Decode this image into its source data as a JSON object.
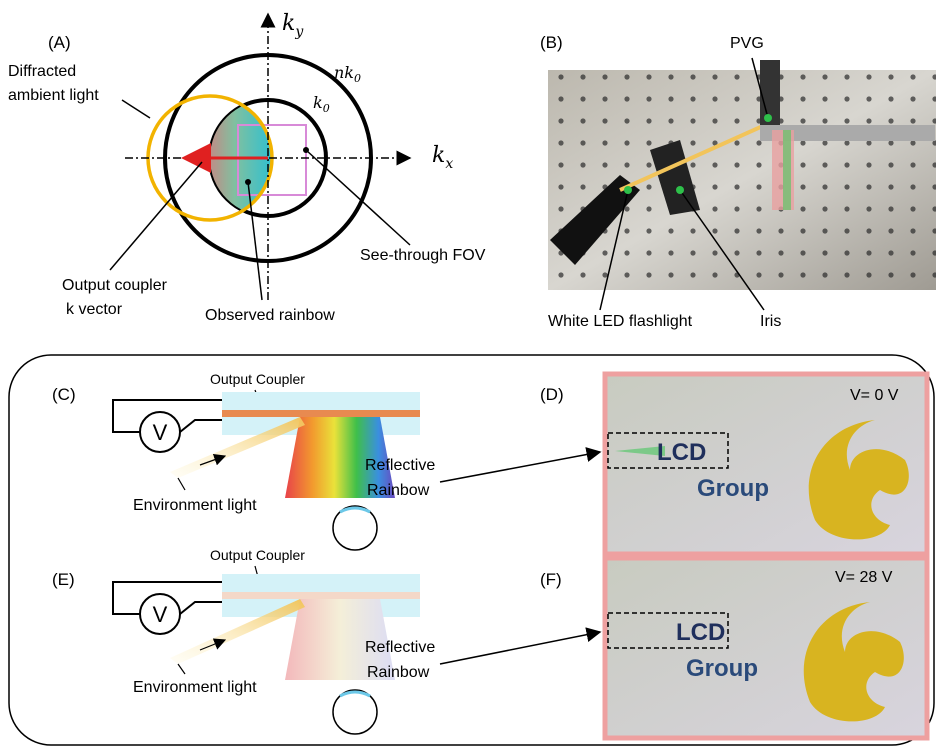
{
  "panel_a": {
    "label": "(A)",
    "ky": {
      "base": "k",
      "sub": "y"
    },
    "kx": {
      "base": "k",
      "sub": "x"
    },
    "nk0": {
      "base": "nk",
      "sub": "0"
    },
    "k0": {
      "base": "k",
      "sub": "0"
    },
    "diffracted": [
      "Diffracted",
      "ambient light"
    ],
    "fov": "See-through FOV",
    "coupler": [
      "Output coupler",
      "k vector"
    ],
    "rainbow": "Observed rainbow"
  },
  "panel_b": {
    "label": "(B)",
    "pvg": "PVG",
    "flashlight": "White LED flashlight",
    "iris": "Iris"
  },
  "panel_c": {
    "label": "(C)",
    "coupler": "Output Coupler",
    "voltage": "V",
    "environment": "Environment light",
    "rainbow": [
      "Reflective",
      "Rainbow"
    ]
  },
  "panel_d": {
    "label": "(D)",
    "voltage": "V= 0 V",
    "lcd": "LCD",
    "group": "Group"
  },
  "panel_e": {
    "label": "(E)",
    "coupler": "Output Coupler",
    "voltage": "V",
    "environment": "Environment light",
    "rainbow": [
      "Reflective",
      "Rainbow"
    ]
  },
  "panel_f": {
    "label": "(F)",
    "voltage": "V= 28 V",
    "lcd": "LCD",
    "group": "Group"
  }
}
